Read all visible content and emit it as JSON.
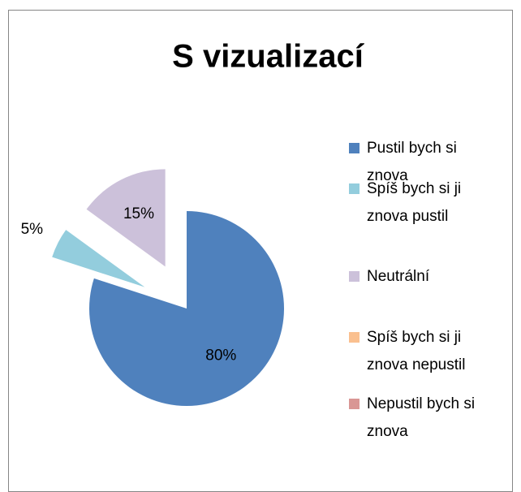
{
  "chart_data": {
    "type": "pie",
    "title": "S vizualizací",
    "categories": [
      "Pustil bych si znova",
      "Spíš bych si ji znova pustil",
      "Neutrální",
      "Spíš bych si ji znova nepustil",
      "Nepustil bych si znova"
    ],
    "values": [
      80,
      5,
      15,
      0,
      0
    ],
    "value_labels": [
      "80%",
      "5%",
      "15%",
      null,
      null
    ],
    "colors": [
      "#4f81bd",
      "#93cddd",
      "#ccc1da",
      "#fac08f",
      "#d99694"
    ]
  }
}
